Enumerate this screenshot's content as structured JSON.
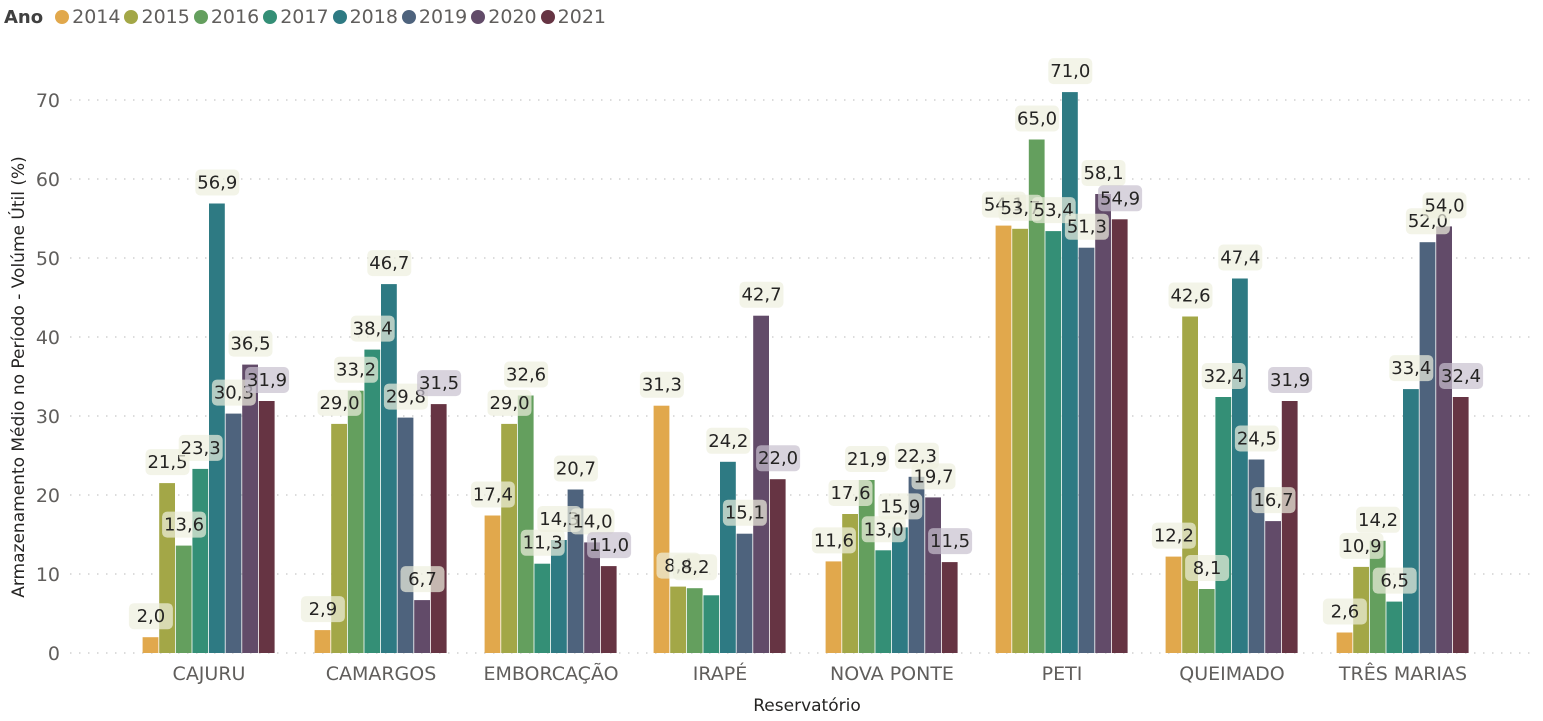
{
  "legend": {
    "title": "Ano"
  },
  "chart_data": {
    "type": "bar",
    "title": "",
    "xlabel": "Reservatório",
    "ylabel": "Armazenamento Médio no Período - Volúme Útil (%)",
    "ylim": [
      0,
      70
    ],
    "yticks": [
      0,
      10,
      20,
      30,
      40,
      50,
      60,
      70
    ],
    "grid": true,
    "legend_position": "top-left",
    "legend_title": "Ano",
    "categories": [
      "CAJURU",
      "CAMARGOS",
      "EMBORCAÇÃO",
      "IRAPÉ",
      "NOVA PONTE",
      "PETI",
      "QUEIMADO",
      "TRÊS MARIAS"
    ],
    "series": [
      {
        "name": "2014",
        "color": "#E1A84C",
        "values": [
          2.0,
          2.9,
          17.4,
          31.3,
          11.6,
          54.1,
          12.2,
          2.6
        ],
        "labels": [
          "2,0",
          "2,9",
          "17,4",
          "31,3",
          "11,6",
          "54,1",
          "12,2",
          "2,6"
        ]
      },
      {
        "name": "2015",
        "color": "#A3A747",
        "values": [
          21.5,
          29.0,
          29.0,
          8.4,
          17.6,
          53.7,
          42.6,
          10.9
        ],
        "labels": [
          "21,5",
          "29,0",
          "29,0",
          "8,4",
          "17,6",
          "53,7",
          "42,6",
          "10,9"
        ]
      },
      {
        "name": "2016",
        "color": "#649F5E",
        "values": [
          13.6,
          33.2,
          32.6,
          8.2,
          21.9,
          65.0,
          8.1,
          14.2
        ],
        "labels": [
          "13,6",
          "33,2",
          "32,6",
          "8,2",
          "21,9",
          "65,0",
          "8,1",
          "14,2"
        ]
      },
      {
        "name": "2017",
        "color": "#348F76",
        "values": [
          23.3,
          38.4,
          11.3,
          7.3,
          13.0,
          53.4,
          32.4,
          6.5
        ],
        "labels": [
          "23,3",
          "38,4",
          "11,3",
          "",
          "13,0",
          "53,4",
          "32,4",
          "6,5"
        ]
      },
      {
        "name": "2018",
        "color": "#2E7A83",
        "values": [
          56.9,
          46.7,
          14.3,
          24.2,
          15.9,
          71.0,
          47.4,
          33.4
        ],
        "labels": [
          "56,9",
          "46,7",
          "14,3",
          "24,2",
          "15,9",
          "71,0",
          "47,4",
          "33,4"
        ]
      },
      {
        "name": "2019",
        "color": "#4E637D",
        "values": [
          30.3,
          29.8,
          20.7,
          15.1,
          22.3,
          51.3,
          24.5,
          52.0
        ],
        "labels": [
          "30,3",
          "29,8",
          "20,7",
          "15,1",
          "22,3",
          "51,3",
          "24,5",
          "52,0"
        ]
      },
      {
        "name": "2020",
        "color": "#624B69",
        "values": [
          36.5,
          6.7,
          14.0,
          42.7,
          19.7,
          58.1,
          16.7,
          54.0
        ],
        "labels": [
          "36,5",
          "6,7",
          "14,0",
          "42,7",
          "19,7",
          "58,1",
          "16,7",
          "54,0"
        ]
      },
      {
        "name": "2021",
        "color": "#663443",
        "values": [
          31.9,
          31.5,
          11.0,
          22.0,
          11.5,
          54.9,
          31.9,
          32.4
        ],
        "labels": [
          "31,9",
          "31,5",
          "11,0",
          "22,0",
          "11,5",
          "54,9",
          "31,9",
          "32,4"
        ]
      }
    ]
  }
}
